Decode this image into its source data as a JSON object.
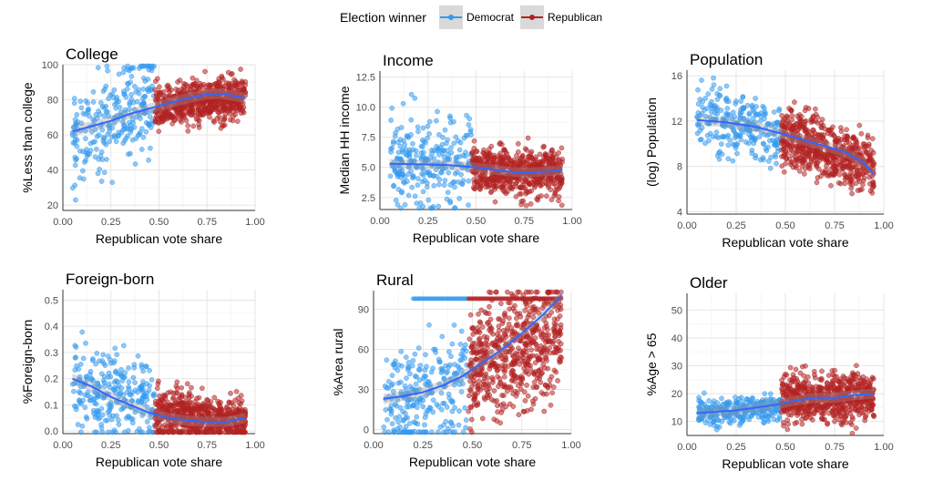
{
  "legend": {
    "title": "Election winner",
    "position": "top",
    "entries": [
      {
        "label": "Democrat",
        "color": "#3399ee"
      },
      {
        "label": "Republican",
        "color": "#b22222"
      }
    ]
  },
  "chart_data": [
    {
      "type": "scatter",
      "title": "College",
      "xlabel": "Republican vote share",
      "ylabel": "%Less than college",
      "xlim": [
        0,
        1
      ],
      "ylim": [
        17,
        100
      ],
      "xticks": [
        0,
        0.25,
        0.5,
        0.75,
        1
      ],
      "xtick_labels": [
        "0.00",
        "0.25",
        "0.50",
        "0.75",
        "1.00"
      ],
      "yticks": [
        20,
        40,
        60,
        80,
        100
      ],
      "ytick_labels": [
        "20",
        "40",
        "60",
        "80",
        "100"
      ],
      "smooth": {
        "x": [
          0.05,
          0.15,
          0.25,
          0.35,
          0.45,
          0.55,
          0.65,
          0.75,
          0.82,
          0.9,
          0.95
        ],
        "y": [
          62,
          65,
          68,
          72,
          75,
          78,
          81,
          83,
          83.5,
          82,
          81
        ]
      },
      "dem_cloud": {
        "x_range": [
          0.05,
          0.48
        ],
        "y_center": [
          58,
          80
        ],
        "spread": 13
      },
      "rep_cloud": {
        "x_range": [
          0.48,
          0.95
        ],
        "y_center": [
          76,
          82
        ],
        "spread": 6
      }
    },
    {
      "type": "scatter",
      "title": "Income",
      "xlabel": "Republican vote share",
      "ylabel": "Median HH income",
      "xlim": [
        0,
        1
      ],
      "ylim": [
        1.5,
        13
      ],
      "xticks": [
        0,
        0.25,
        0.5,
        0.75,
        1
      ],
      "xtick_labels": [
        "0.00",
        "0.25",
        "0.50",
        "0.75",
        "1.00"
      ],
      "yticks": [
        2.5,
        5,
        7.5,
        10,
        12.5
      ],
      "ytick_labels": [
        "2.5",
        "5.0",
        "7.5",
        "10.0",
        "12.5"
      ],
      "smooth": {
        "x": [
          0.05,
          0.2,
          0.35,
          0.5,
          0.6,
          0.7,
          0.8,
          0.9,
          0.95
        ],
        "y": [
          5.3,
          5.25,
          5.2,
          5.0,
          4.8,
          4.6,
          4.6,
          4.7,
          4.8
        ]
      },
      "dem_cloud": {
        "x_range": [
          0.05,
          0.48
        ],
        "y_center": [
          5.2,
          5.5
        ],
        "spread": 1.8
      },
      "rep_cloud": {
        "x_range": [
          0.48,
          0.95
        ],
        "y_center": [
          4.9,
          4.5
        ],
        "spread": 1.0
      }
    },
    {
      "type": "scatter",
      "title": "Population",
      "xlabel": "Republican vote share",
      "ylabel": "(log) Population",
      "xlim": [
        0,
        1
      ],
      "ylim": [
        3.8,
        16.5
      ],
      "xticks": [
        0,
        0.25,
        0.5,
        0.75,
        1
      ],
      "xtick_labels": [
        "0.00",
        "0.25",
        "0.50",
        "0.75",
        "1.00"
      ],
      "yticks": [
        4,
        8,
        12,
        16
      ],
      "ytick_labels": [
        "4",
        "8",
        "12",
        "16"
      ],
      "smooth": {
        "x": [
          0.05,
          0.2,
          0.35,
          0.5,
          0.6,
          0.7,
          0.8,
          0.9,
          0.95
        ],
        "y": [
          12.1,
          11.9,
          11.5,
          10.8,
          10.3,
          9.8,
          9.3,
          8.3,
          7.3
        ]
      },
      "dem_cloud": {
        "x_range": [
          0.05,
          0.48
        ],
        "y_center": [
          12.2,
          11.0
        ],
        "spread": 1.4
      },
      "rep_cloud": {
        "x_range": [
          0.48,
          0.95
        ],
        "y_center": [
          10.8,
          8.0
        ],
        "spread": 1.3
      }
    },
    {
      "type": "scatter",
      "title": "Foreign-born",
      "xlabel": "Republican vote share",
      "ylabel": "%Foreign-born",
      "xlim": [
        0,
        1
      ],
      "ylim": [
        -0.01,
        0.54
      ],
      "xticks": [
        0,
        0.25,
        0.5,
        0.75,
        1
      ],
      "xtick_labels": [
        "0.00",
        "0.25",
        "0.50",
        "0.75",
        "1.00"
      ],
      "yticks": [
        0,
        0.1,
        0.2,
        0.3,
        0.4,
        0.5
      ],
      "ytick_labels": [
        "0.0",
        "0.1",
        "0.2",
        "0.3",
        "0.4",
        "0.5"
      ],
      "smooth": {
        "x": [
          0.05,
          0.15,
          0.25,
          0.35,
          0.45,
          0.55,
          0.65,
          0.75,
          0.85,
          0.95
        ],
        "y": [
          0.2,
          0.17,
          0.13,
          0.1,
          0.07,
          0.05,
          0.04,
          0.035,
          0.035,
          0.05
        ]
      },
      "dem_cloud": {
        "x_range": [
          0.05,
          0.48
        ],
        "y_center": [
          0.18,
          0.1
        ],
        "spread": 0.08
      },
      "rep_cloud": {
        "x_range": [
          0.48,
          0.95
        ],
        "y_center": [
          0.07,
          0.035
        ],
        "spread": 0.045
      }
    },
    {
      "type": "scatter",
      "title": "Rural",
      "xlabel": "Republican vote share",
      "ylabel": "%Area rural",
      "xlim": [
        0,
        1
      ],
      "ylim": [
        -3,
        104
      ],
      "xticks": [
        0,
        0.25,
        0.5,
        0.75,
        1
      ],
      "xtick_labels": [
        "0.00",
        "0.25",
        "0.50",
        "0.75",
        "1.00"
      ],
      "yticks": [
        0,
        30,
        60,
        90
      ],
      "ytick_labels": [
        "0",
        "30",
        "60",
        "90"
      ],
      "smooth": {
        "x": [
          0.05,
          0.15,
          0.25,
          0.35,
          0.45,
          0.55,
          0.65,
          0.75,
          0.85,
          0.95
        ],
        "y": [
          23,
          25,
          28,
          33,
          40,
          50,
          60,
          72,
          85,
          100
        ]
      },
      "dem_cloud": {
        "x_range": [
          0.05,
          0.48
        ],
        "y_center": [
          15,
          35
        ],
        "spread": 20
      },
      "rep_cloud": {
        "x_range": [
          0.48,
          0.95
        ],
        "y_center": [
          45,
          75
        ],
        "spread": 22
      }
    },
    {
      "type": "scatter",
      "title": "Older",
      "xlabel": "Republican vote share",
      "ylabel": "%Age > 65",
      "xlim": [
        0,
        1
      ],
      "ylim": [
        5,
        56
      ],
      "xticks": [
        0,
        0.25,
        0.5,
        0.75,
        1
      ],
      "xtick_labels": [
        "0.00",
        "0.25",
        "0.50",
        "0.75",
        "1.00"
      ],
      "yticks": [
        10,
        20,
        30,
        40,
        50
      ],
      "ytick_labels": [
        "10",
        "20",
        "30",
        "40",
        "50"
      ],
      "smooth": {
        "x": [
          0.05,
          0.15,
          0.25,
          0.35,
          0.45,
          0.55,
          0.65,
          0.75,
          0.85,
          0.95
        ],
        "y": [
          13,
          13.5,
          14,
          15,
          16,
          17.5,
          18.5,
          18.5,
          19.5,
          20
        ]
      },
      "dem_cloud": {
        "x_range": [
          0.05,
          0.48
        ],
        "y_center": [
          13,
          15
        ],
        "spread": 2.8
      },
      "rep_cloud": {
        "x_range": [
          0.48,
          0.95
        ],
        "y_center": [
          18,
          19.5
        ],
        "spread": 4.2
      }
    }
  ]
}
